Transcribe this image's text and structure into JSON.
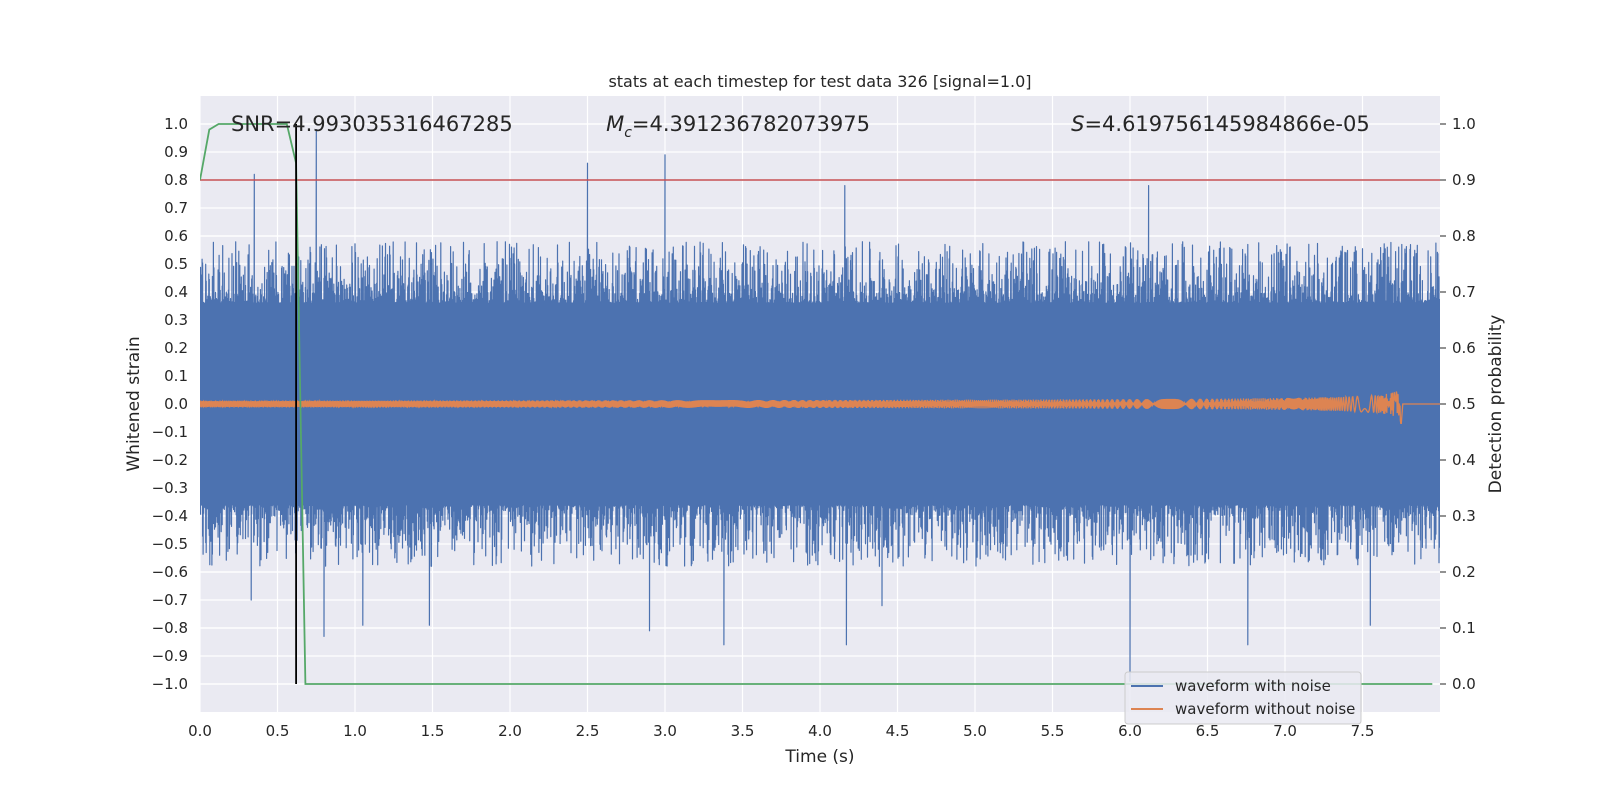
{
  "chart_data": {
    "type": "line",
    "title": "stats at each timestep for test data 326 [signal=1.0]",
    "xlabel": "Time (s)",
    "ylabel": "Whitened strain",
    "ylabel_right": "Detection probability",
    "xlim": [
      0.0,
      8.0
    ],
    "ylim": [
      -1.1,
      1.1
    ],
    "ylim_right": [
      -0.05,
      1.05
    ],
    "x_ticks": [
      0.0,
      0.5,
      1.0,
      1.5,
      2.0,
      2.5,
      3.0,
      3.5,
      4.0,
      4.5,
      5.0,
      5.5,
      6.0,
      6.5,
      7.0,
      7.5
    ],
    "x_tick_labels": [
      "0.0",
      "0.5",
      "1.0",
      "1.5",
      "2.0",
      "2.5",
      "3.0",
      "3.5",
      "4.0",
      "4.5",
      "5.0",
      "5.5",
      "6.0",
      "6.5",
      "7.0",
      "7.5"
    ],
    "y_ticks": [
      1.0,
      0.9,
      0.8,
      0.7,
      0.6,
      0.5,
      0.4,
      0.3,
      0.2,
      0.1,
      0.0,
      -0.1,
      -0.2,
      -0.3,
      -0.4,
      -0.5,
      -0.6,
      -0.7,
      -0.8,
      -0.9,
      -1.0
    ],
    "y_tick_labels": [
      "1.0",
      "0.9",
      "0.8",
      "0.7",
      "0.6",
      "0.5",
      "0.4",
      "0.3",
      "0.2",
      "0.1",
      "0.0",
      "−0.1",
      "−0.2",
      "−0.3",
      "−0.4",
      "−0.5",
      "−0.6",
      "−0.7",
      "−0.8",
      "−0.9",
      "−1.0"
    ],
    "y2_ticks": [
      1.0,
      0.9,
      0.8,
      0.7,
      0.6,
      0.5,
      0.4,
      0.3,
      0.2,
      0.1,
      0.0
    ],
    "y2_tick_labels": [
      "1.0",
      "0.9",
      "0.8",
      "0.7",
      "0.6",
      "0.5",
      "0.4",
      "0.3",
      "0.2",
      "0.1",
      "0.0"
    ],
    "annotations": [
      {
        "id": "snr",
        "text": "SNR=4.993035316467285",
        "x": 0.2
      },
      {
        "id": "mc",
        "text": "=4.391236782073975",
        "prefix": "M",
        "subscript": "c",
        "x": 2.62
      },
      {
        "id": "s",
        "text": "=4.619756145984866e-05",
        "prefix": "S",
        "x": 5.62
      }
    ],
    "annotation_y": 1.0,
    "series": [
      {
        "name": "waveform with noise",
        "color": "#4c72b0",
        "description": "dense noisy whitened strain, envelope roughly ±0.4 to ±0.6 with spikes",
        "spikes": [
          {
            "t": 0.35,
            "v": 0.82
          },
          {
            "t": 0.75,
            "v": 0.98
          },
          {
            "t": 2.5,
            "v": 0.86
          },
          {
            "t": 3.0,
            "v": 0.89
          },
          {
            "t": 4.16,
            "v": 0.78
          },
          {
            "t": 6.12,
            "v": 0.78
          },
          {
            "t": 6.0,
            "v": -0.99
          },
          {
            "t": 4.17,
            "v": -0.86
          },
          {
            "t": 6.76,
            "v": -0.86
          },
          {
            "t": 3.38,
            "v": -0.86
          },
          {
            "t": 0.8,
            "v": -0.83
          },
          {
            "t": 1.05,
            "v": -0.79
          },
          {
            "t": 1.48,
            "v": -0.79
          },
          {
            "t": 2.9,
            "v": -0.81
          },
          {
            "t": 7.55,
            "v": -0.79
          },
          {
            "t": 0.33,
            "v": -0.7
          },
          {
            "t": 4.4,
            "v": -0.72
          }
        ]
      },
      {
        "name": "waveform without noise",
        "color": "#dd8452",
        "description": "inspiral chirp, amplitude grows toward merger near t=7.75 s then stops",
        "merger_time": 7.75,
        "start_amplitude": 0.012,
        "peak_amplitude": 0.1
      },
      {
        "name": "detection probability",
        "color": "#55a868",
        "axis": "right",
        "x": [
          0.0,
          0.06,
          0.12,
          0.2,
          0.3,
          0.4,
          0.5,
          0.56,
          0.62,
          0.68,
          0.8,
          1.0,
          2.0,
          4.0,
          6.0,
          7.95
        ],
        "y": [
          0.9,
          0.99,
          1.0,
          1.0,
          1.0,
          1.0,
          1.0,
          1.0,
          0.93,
          0.0,
          0.0,
          0.0,
          0.0,
          0.0,
          0.0,
          0.0
        ]
      }
    ],
    "threshold": {
      "color": "#c44e52",
      "axis": "right",
      "value": 0.9
    },
    "vertical_marker": {
      "color": "#000000",
      "x": 0.62
    },
    "legend": {
      "placement": "lower-right",
      "entries": [
        {
          "label": "waveform with noise",
          "color": "#4c72b0"
        },
        {
          "label": "waveform without noise",
          "color": "#dd8452"
        }
      ]
    }
  }
}
